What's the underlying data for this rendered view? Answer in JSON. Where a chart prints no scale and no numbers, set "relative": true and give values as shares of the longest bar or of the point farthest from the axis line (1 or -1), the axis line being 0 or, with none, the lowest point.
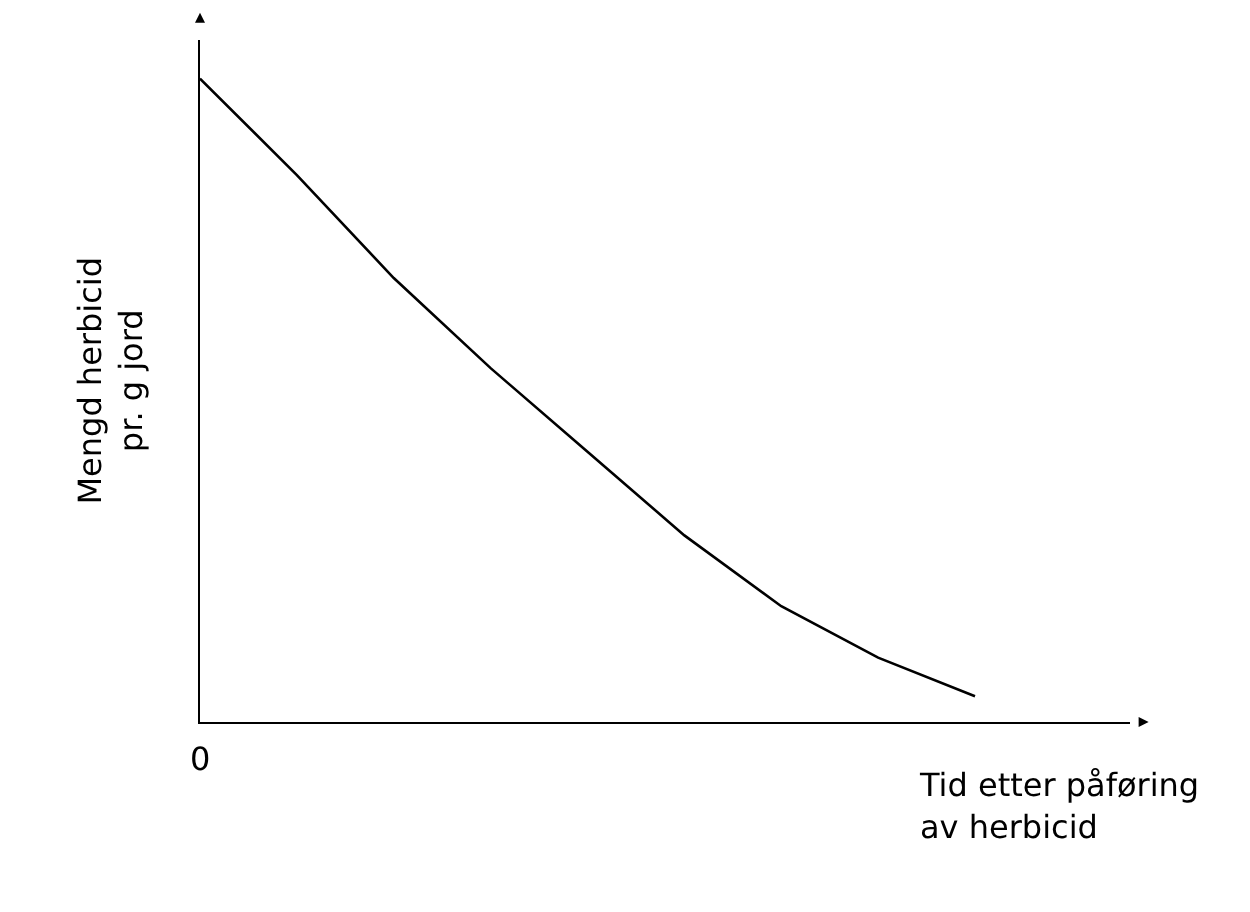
{
  "chart_data": {
    "type": "line",
    "relative": true,
    "xlabel": "Tid etter påføring\nav herbicid",
    "ylabel": "Mengd herbicid\npr. g jord",
    "annotations": [
      "0"
    ],
    "categories": [
      null,
      null,
      null,
      null,
      null,
      null,
      null,
      null,
      null
    ],
    "series": [
      {
        "color": "#000000",
        "values": [
          1,
          0.85,
          0.69,
          0.55,
          0.42,
          0.29,
          0.18,
          0.1,
          0.04
        ]
      }
    ],
    "marker": "none",
    "line_style": "solid"
  }
}
